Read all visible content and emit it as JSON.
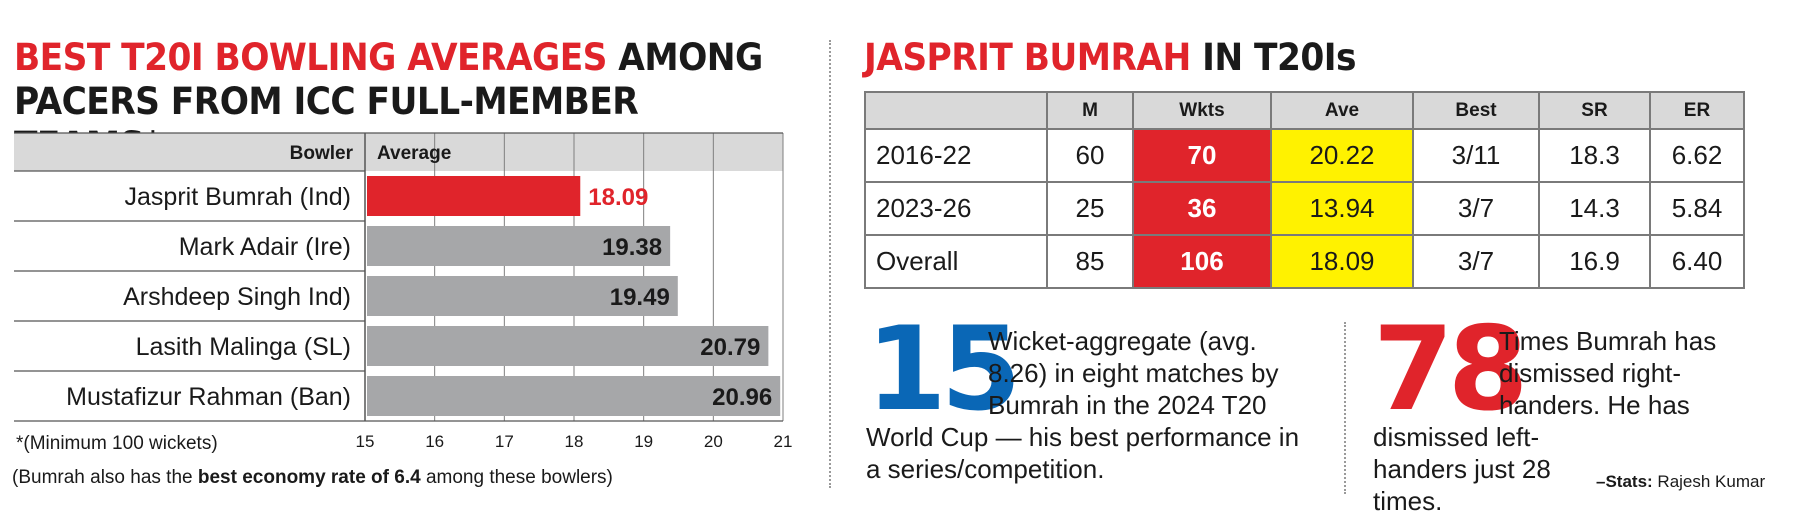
{
  "left_title": {
    "highlight": "BEST T20I BOWLING AVERAGES",
    "rest": " AMONG PACERS FROM ICC FULL-MEMBER TEAMS*"
  },
  "chart_data": {
    "type": "bar",
    "orientation": "horizontal",
    "column_headers": {
      "category": "Bowler",
      "value": "Average"
    },
    "categories": [
      "Jasprit Bumrah (Ind)",
      "Mark Adair (Ire)",
      "Arshdeep Singh Ind)",
      "Lasith Malinga (SL)",
      "Mustafizur Rahman (Ban)"
    ],
    "values": [
      18.09,
      19.38,
      19.49,
      20.79,
      20.96
    ],
    "value_labels": [
      "18.09",
      "19.38",
      "19.49",
      "20.79",
      "20.96"
    ],
    "highlight_index": 0,
    "xlim": [
      15,
      21
    ],
    "ticks": [
      "15",
      "16",
      "17",
      "18",
      "19",
      "20",
      "21"
    ],
    "grid": true,
    "colors": {
      "highlight": "#e0242b",
      "bar": "#a6a7a9",
      "label_highlight": "#e0242b",
      "label": "#1a1a1a"
    }
  },
  "footnotes": {
    "line1": "*(Minimum 100 wickets)",
    "line2_pre": "(Bumrah also has the ",
    "line2_bold": "best economy rate of 6.4",
    "line2_post": " among these bowlers)"
  },
  "right_title": {
    "highlight": "JASPRIT BUMRAH",
    "rest": " IN T20Is"
  },
  "table": {
    "headers": [
      "",
      "M",
      "Wkts",
      "Ave",
      "Best",
      "SR",
      "ER"
    ],
    "rows": [
      [
        "2016-22",
        "60",
        "70",
        "20.22",
        "3/11",
        "18.3",
        "6.62"
      ],
      [
        "2023-26",
        "25",
        "36",
        "13.94",
        "3/7",
        "14.3",
        "5.84"
      ],
      [
        "Overall",
        "85",
        "106",
        "18.09",
        "3/7",
        "16.9",
        "6.40"
      ]
    ]
  },
  "stat1": {
    "number": "15",
    "text_top": "Wicket-aggregate (avg. 8.26) in eight matches by Bumrah in the 2024 T20",
    "text_bottom": "World Cup — his best performance in a series/competition."
  },
  "stat2": {
    "number": "78",
    "text_top": "Times Bumrah has dismissed right-handers. He has",
    "text_bottom": "dismissed left-handers just 28 times."
  },
  "credit": {
    "label": "–Stats:",
    "name": " Rajesh Kumar"
  },
  "colors": {
    "accent_red": "#e0242b",
    "accent_blue": "#0a67b6",
    "highlight_yellow": "#fff200",
    "header_gray": "#d9d9d9"
  }
}
